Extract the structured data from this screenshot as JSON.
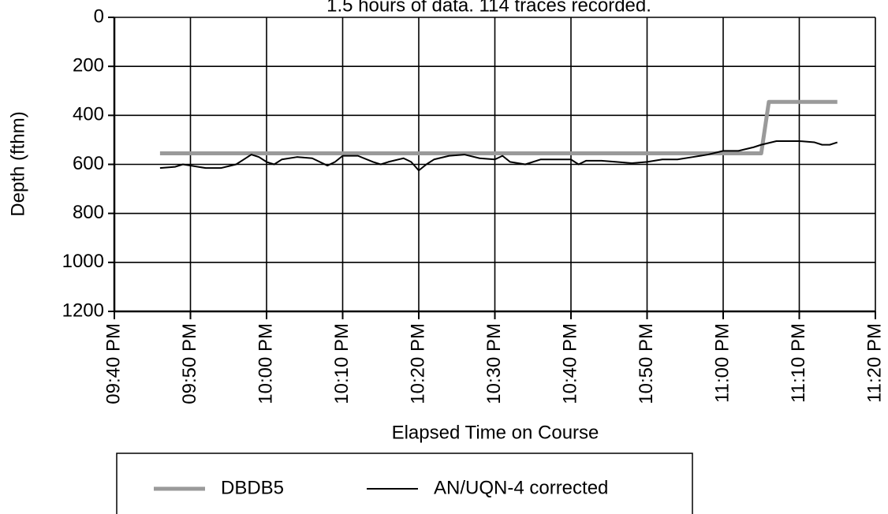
{
  "chart_data": {
    "type": "line",
    "title": "1.5 hours of data. 114 traces recorded.",
    "x_label": "Elapsed Time on Course",
    "y_label": "Depth (fthm)",
    "ylim": [
      0,
      1200
    ],
    "yticks": [
      0,
      200,
      400,
      600,
      800,
      1000,
      1200
    ],
    "y_inverted": true,
    "xlim": [
      "09:40 PM",
      "11:20 PM"
    ],
    "xticks": [
      "09:40 PM",
      "09:50 PM",
      "10:00 PM",
      "10:10 PM",
      "10:20 PM",
      "10:30 PM",
      "10:40 PM",
      "10:50 PM",
      "11:00 PM",
      "11:10 PM",
      "11:20 PM"
    ],
    "grid": true,
    "legend": "bottom",
    "series": [
      {
        "name": "DBDB5",
        "color": "#9a9a9a",
        "x": [
          "09:46 PM",
          "11:05 PM",
          "11:06 PM",
          "11:15 PM"
        ],
        "values": [
          555,
          555,
          345,
          345
        ]
      },
      {
        "name": "AN/UQN-4 corrected",
        "color": "#000000",
        "x": [
          "09:46 PM",
          "09:48 PM",
          "09:49 PM",
          "09:50 PM",
          "09:52 PM",
          "09:54 PM",
          "09:56 PM",
          "09:57 PM",
          "09:58 PM",
          "09:59 PM",
          "10:00 PM",
          "10:01 PM",
          "10:02 PM",
          "10:04 PM",
          "10:06 PM",
          "10:07 PM",
          "10:08 PM",
          "10:09 PM",
          "10:10 PM",
          "10:12 PM",
          "10:14 PM",
          "10:15 PM",
          "10:16 PM",
          "10:18 PM",
          "10:19 PM",
          "10:20 PM",
          "10:21 PM",
          "10:22 PM",
          "10:24 PM",
          "10:26 PM",
          "10:28 PM",
          "10:30 PM",
          "10:31 PM",
          "10:32 PM",
          "10:34 PM",
          "10:36 PM",
          "10:38 PM",
          "10:40 PM",
          "10:41 PM",
          "10:42 PM",
          "10:44 PM",
          "10:46 PM",
          "10:48 PM",
          "10:50 PM",
          "10:52 PM",
          "10:54 PM",
          "10:56 PM",
          "10:58 PM",
          "11:00 PM",
          "11:02 PM",
          "11:04 PM",
          "11:05 PM",
          "11:07 PM",
          "11:10 PM",
          "11:12 PM",
          "11:13 PM",
          "11:14 PM",
          "11:15 PM"
        ],
        "values": [
          615,
          610,
          600,
          605,
          615,
          615,
          600,
          580,
          560,
          570,
          590,
          600,
          580,
          570,
          575,
          590,
          605,
          590,
          565,
          565,
          590,
          600,
          590,
          575,
          590,
          625,
          600,
          580,
          565,
          560,
          575,
          580,
          565,
          590,
          600,
          580,
          580,
          580,
          600,
          585,
          585,
          590,
          595,
          590,
          580,
          580,
          570,
          560,
          545,
          545,
          530,
          520,
          505,
          505,
          510,
          520,
          520,
          510
        ]
      }
    ]
  }
}
